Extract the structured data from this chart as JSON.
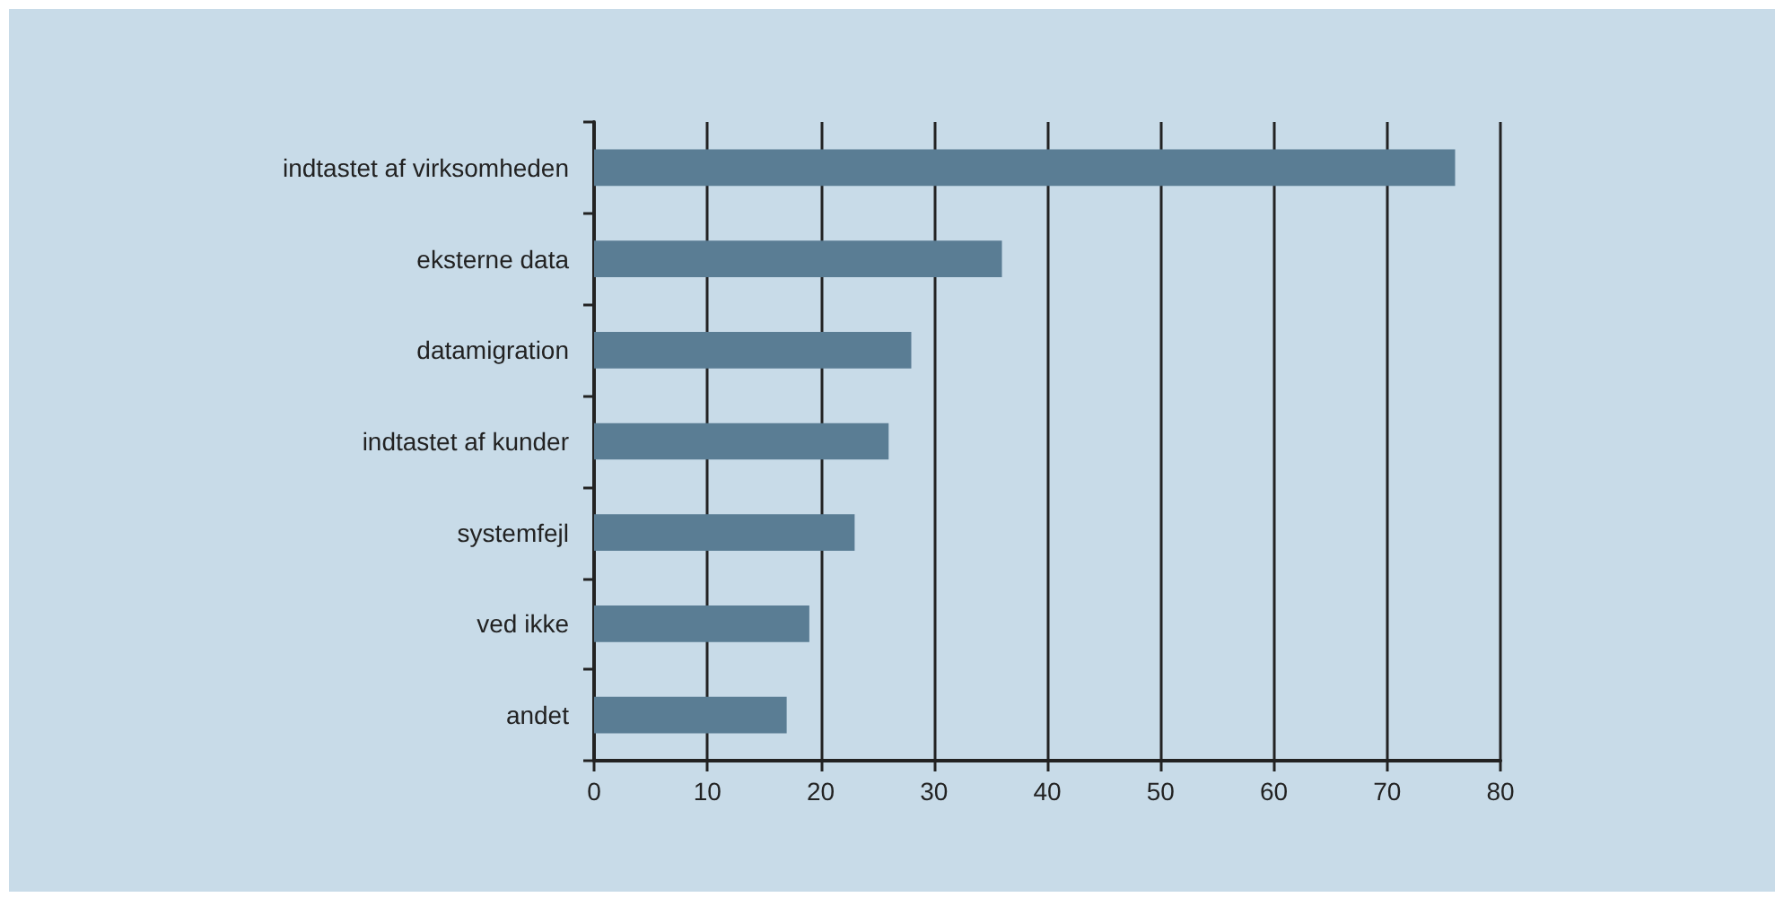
{
  "chart_data": {
    "type": "bar",
    "orientation": "horizontal",
    "categories": [
      "indtastet af virksomheden",
      "eksterne data",
      "datamigration",
      "indtastet af kunder",
      "systemfejl",
      "ved ikke",
      "andet"
    ],
    "values": [
      76,
      36,
      28,
      26,
      23,
      19,
      17
    ],
    "color": "#5a7d94",
    "xlim": [
      0,
      80
    ],
    "xticks": [
      0,
      10,
      20,
      30,
      40,
      50,
      60,
      70,
      80
    ],
    "grid": "x"
  }
}
